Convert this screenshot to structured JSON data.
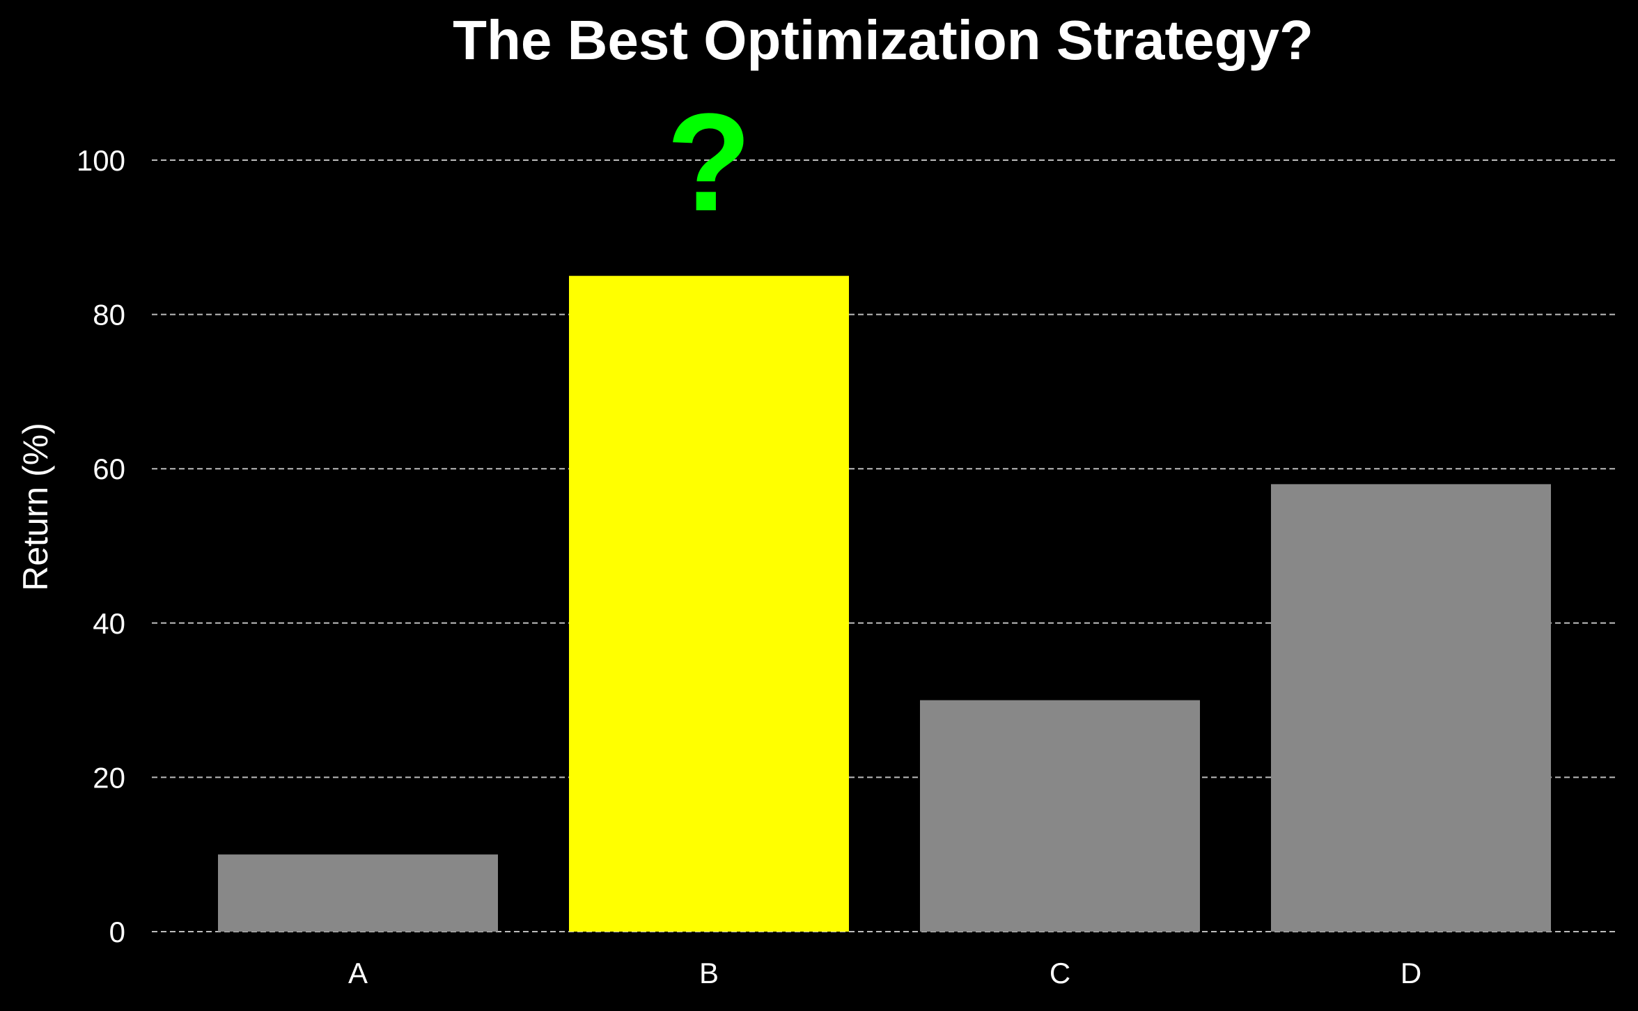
{
  "chart_data": {
    "type": "bar",
    "title": "The Best Optimization Strategy?",
    "xlabel": "",
    "ylabel": "Return (%)",
    "categories": [
      "A",
      "B",
      "C",
      "D"
    ],
    "values": [
      10,
      85,
      30,
      58
    ],
    "ylim": [
      0,
      100
    ],
    "yticks": [
      0,
      20,
      40,
      60,
      80,
      100
    ],
    "grid": "horizontal dashed",
    "legend": "none",
    "highlight_category": "B",
    "annotation": {
      "text": "?",
      "category": "B",
      "color": "#00ff00"
    },
    "colors": {
      "background": "#000000",
      "bar_default": "#888888",
      "bar_highlight": "#ffff00",
      "text": "#ffffff",
      "grid": "#bdbdbd"
    }
  }
}
